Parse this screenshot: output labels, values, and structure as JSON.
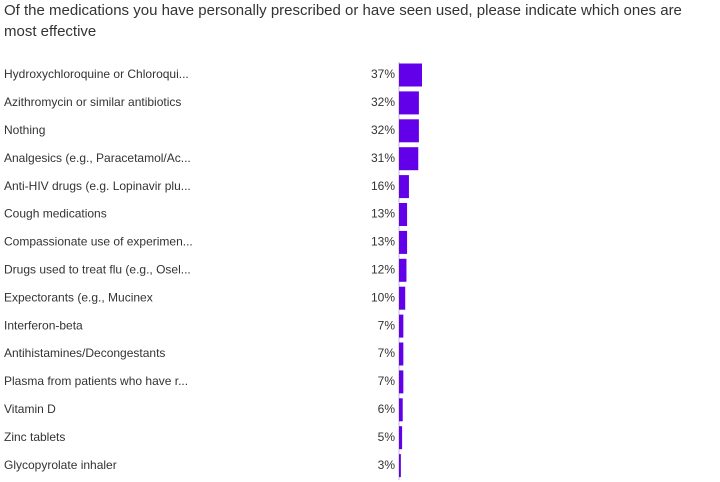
{
  "chart_data": {
    "type": "bar",
    "orientation": "horizontal",
    "title": "Of the medications you have personally prescribed or have seen used, please indicate which ones are most effective",
    "categories": [
      "Hydroxychloroquine or Chloroqui...",
      "Azithromycin or similar antibiotics",
      "Nothing",
      "Analgesics (e.g., Paracetamol/Ac...",
      "Anti-HIV drugs (e.g. Lopinavir plu...",
      "Cough medications",
      "Compassionate use of experimen...",
      "Drugs used to treat flu (e.g., Osel...",
      "Expectorants (e.g., Mucinex",
      "Interferon-beta",
      "Antihistamines/Decongestants",
      "Plasma from patients who have r...",
      "Vitamin D",
      "Zinc tablets",
      "Glycopyrolate inhaler"
    ],
    "values": [
      37,
      32,
      32,
      31,
      16,
      13,
      13,
      12,
      10,
      7,
      7,
      7,
      6,
      5,
      3
    ],
    "value_labels": [
      "37%",
      "32%",
      "32%",
      "31%",
      "16%",
      "13%",
      "13%",
      "12%",
      "10%",
      "7%",
      "7%",
      "7%",
      "6%",
      "5%",
      "3%"
    ],
    "unit": "%",
    "xlim": [
      0,
      100
    ],
    "bar_color": "#6200ea",
    "axis_color": "#bdbdbd",
    "grid": false,
    "legend": "none"
  }
}
